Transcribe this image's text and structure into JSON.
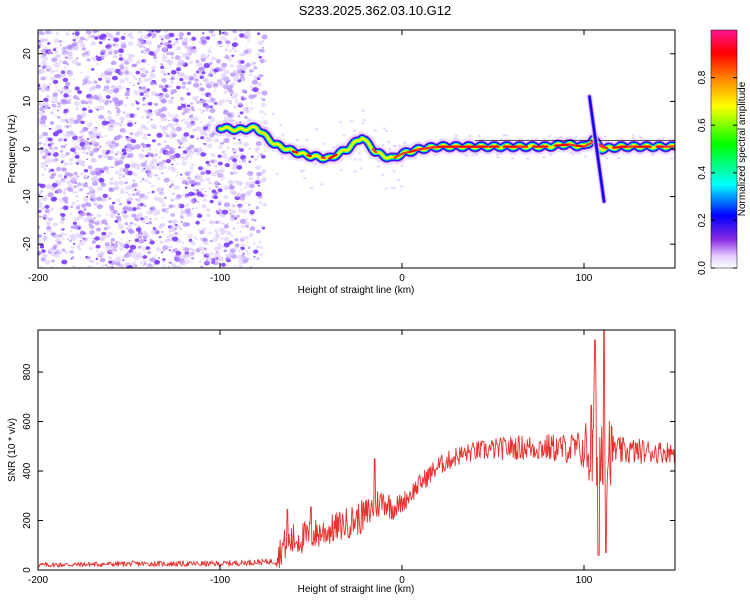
{
  "title": "S233.2025.362.03.10.G12",
  "colors": {
    "snr_line": "#e8302c",
    "scatter": "#7c3cff",
    "colormap": [
      "#ffffff",
      "#e6ccff",
      "#8a2be2",
      "#0000ff",
      "#00ffff",
      "#00ff00",
      "#ffff00",
      "#ff8000",
      "#ff0000",
      "#ff1493"
    ]
  },
  "chart_data": [
    {
      "type": "heatmap",
      "name": "spectrogram",
      "xlabel": "Height of straight line (km)",
      "ylabel": "Frequency (Hz)",
      "xlim": [
        -200,
        150
      ],
      "ylim": [
        -25,
        25
      ],
      "x_ticks": [
        -200,
        -100,
        0,
        100
      ],
      "x_tick_labels": [
        "-200",
        "-100",
        "0",
        "100"
      ],
      "y_ticks": [
        -20,
        -10,
        0,
        10,
        20
      ],
      "y_tick_labels": [
        "-20",
        "-10",
        "0",
        "10",
        "20"
      ],
      "noise_region_x": [
        -200,
        -75
      ],
      "ridge": {
        "x": [
          -100,
          -90,
          -80,
          -70,
          -60,
          -50,
          -40,
          -30,
          -22,
          -15,
          -10,
          -5,
          0,
          10,
          20,
          40,
          60,
          80,
          90,
          100,
          105,
          110,
          120,
          140,
          150
        ],
        "freq": [
          4.5,
          4.0,
          4.5,
          1.0,
          -0.5,
          -1.5,
          -2.0,
          0.0,
          2.5,
          -0.5,
          -1.5,
          -2.0,
          -1.0,
          0.0,
          0.5,
          0.5,
          0.5,
          0.5,
          1.0,
          0.5,
          2.0,
          0.0,
          0.5,
          0.5,
          0.5
        ]
      },
      "spike": {
        "x": [
          103,
          111
        ],
        "freq": [
          11,
          -11
        ]
      }
    },
    {
      "type": "colorbar",
      "label": "Normalized spectral amplitude",
      "range": [
        0.0,
        1.0
      ],
      "ticks": [
        0.0,
        0.2,
        0.4,
        0.6,
        0.8
      ],
      "tick_labels": [
        "0.0",
        "0.2",
        "0.4",
        "0.6",
        "0.8"
      ]
    },
    {
      "type": "line",
      "name": "snr",
      "xlabel": "Height of straight line (km)",
      "ylabel": "SNR (10 * v/v)",
      "xlim": [
        -200,
        150
      ],
      "ylim": [
        0,
        970
      ],
      "x_ticks": [
        -200,
        -100,
        0,
        100
      ],
      "x_tick_labels": [
        "-200",
        "-100",
        "0",
        "100"
      ],
      "y_ticks": [
        0,
        200,
        400,
        600,
        800
      ],
      "y_tick_labels": [
        "0",
        "200",
        "400",
        "600",
        "800"
      ],
      "trend": {
        "x": [
          -200,
          -150,
          -100,
          -70,
          -65,
          -60,
          -50,
          -40,
          -30,
          -20,
          -15,
          -10,
          -5,
          0,
          10,
          20,
          30,
          40,
          60,
          80,
          95,
          100,
          105,
          108,
          110,
          112,
          115,
          120,
          130,
          150
        ],
        "y": [
          20,
          25,
          25,
          35,
          100,
          120,
          140,
          160,
          190,
          220,
          260,
          280,
          250,
          270,
          350,
          420,
          460,
          480,
          495,
          495,
          490,
          485,
          500,
          480,
          470,
          480,
          490,
          480,
          480,
          475
        ]
      },
      "noise_amplitude": [
        [
          -200,
          10
        ],
        [
          -70,
          12
        ],
        [
          -68,
          60
        ],
        [
          -60,
          70
        ],
        [
          -40,
          60
        ],
        [
          -20,
          70
        ],
        [
          -10,
          60
        ],
        [
          0,
          40
        ],
        [
          40,
          40
        ],
        [
          90,
          60
        ],
        [
          100,
          80
        ],
        [
          105,
          280
        ],
        [
          112,
          320
        ],
        [
          116,
          60
        ],
        [
          150,
          40
        ]
      ],
      "spikes": [
        {
          "x": -63,
          "y": 245
        },
        {
          "x": -50,
          "y": 255
        },
        {
          "x": -15,
          "y": 450
        },
        {
          "x": 106,
          "y": 930
        },
        {
          "x": 108,
          "y": 60
        },
        {
          "x": 111,
          "y": 970
        },
        {
          "x": 112,
          "y": 70
        }
      ]
    }
  ]
}
